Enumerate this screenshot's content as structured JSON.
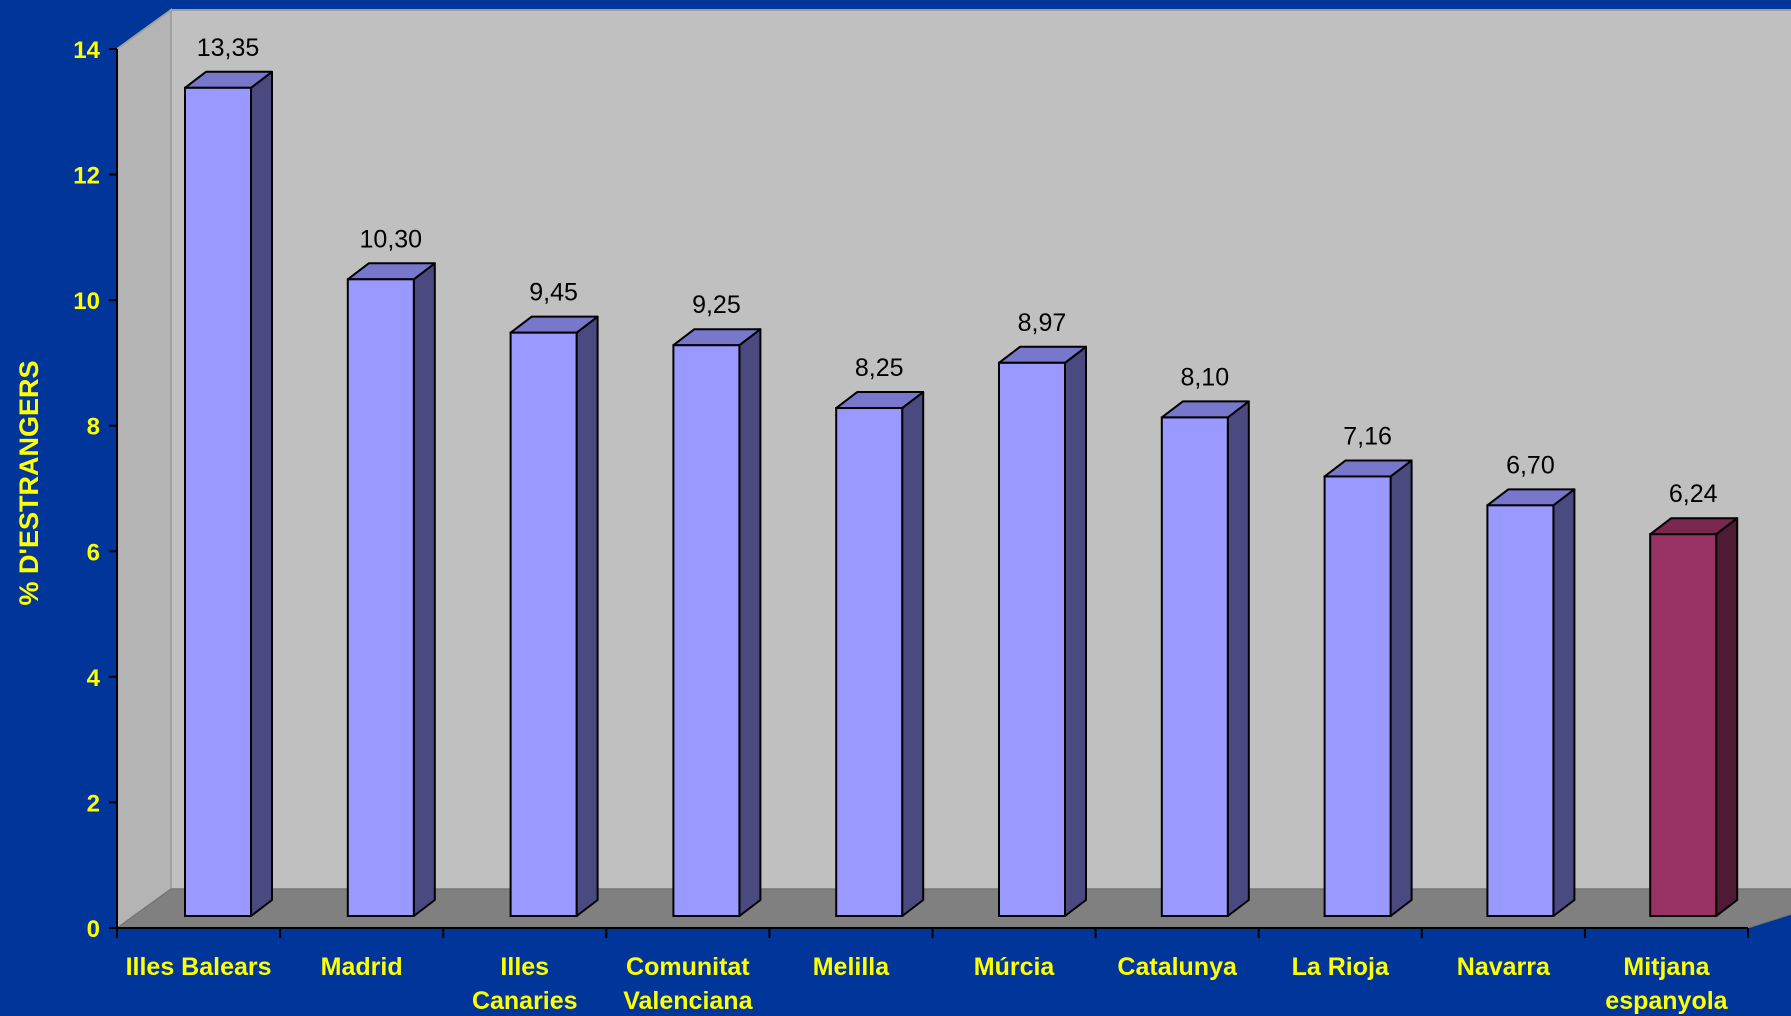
{
  "chart_data": {
    "type": "bar",
    "ylabel": "% D'ESTRANGERS",
    "ylim": [
      0,
      14
    ],
    "yticks": [
      "0",
      "2",
      "4",
      "6",
      "8",
      "10",
      "12",
      "14"
    ],
    "categories": [
      "Illes Balears",
      "Madrid",
      "Illes Canaries",
      "Comunitat Valenciana",
      "Melilla",
      "Múrcia",
      "Catalunya",
      "La Rioja",
      "Navarra",
      "Mitjana espanyola"
    ],
    "category_lines": [
      [
        "Illes Balears"
      ],
      [
        "Madrid"
      ],
      [
        "Illes",
        "Canaries"
      ],
      [
        "Comunitat",
        "Valenciana"
      ],
      [
        "Melilla"
      ],
      [
        "Múrcia"
      ],
      [
        "Catalunya"
      ],
      [
        "La Rioja"
      ],
      [
        "Navarra"
      ],
      [
        "Mitjana",
        "espanyola"
      ]
    ],
    "values": [
      13.35,
      10.3,
      9.45,
      9.25,
      8.25,
      8.97,
      8.1,
      7.16,
      6.7,
      6.24
    ],
    "data_labels": [
      "13,35",
      "10,30",
      "9,45",
      "9,25",
      "8,25",
      "8,97",
      "8,10",
      "7,16",
      "6,70",
      "6,24"
    ],
    "grid": false,
    "style": "3d-column",
    "colors": {
      "bar_front": "#9999ff",
      "bar_side": "#4b4a80",
      "bar_top": "#7777cc",
      "highlight_front": "#993366",
      "highlight_side": "#4f1a34",
      "highlight_top": "#7a2850",
      "wall": "#c0c0c0",
      "floor": "#808080",
      "axis_text": "#ffff00",
      "data_label": "#000000",
      "background": "#00359a"
    },
    "highlight_index": 9
  }
}
